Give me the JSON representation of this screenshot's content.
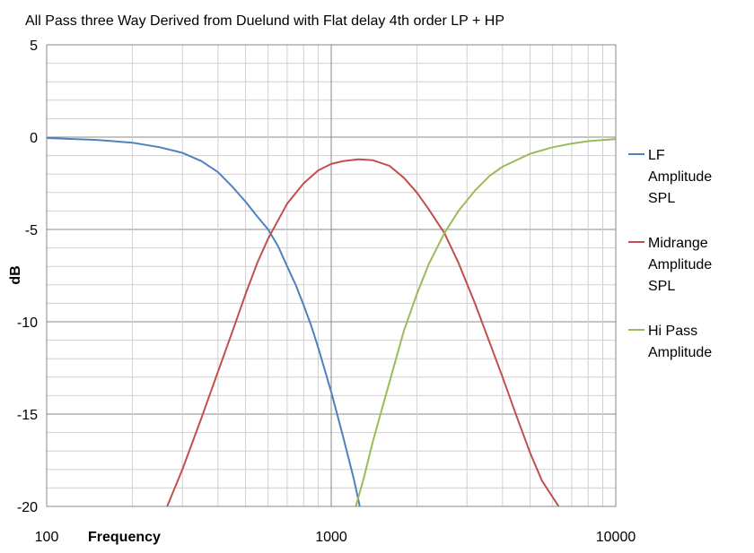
{
  "chart_data": {
    "type": "line",
    "title": "All Pass three Way Derived from Duelund with  Flat delay 4th order LP  + HP",
    "xlabel": "Frequency",
    "ylabel": "dB",
    "x_scale": "log",
    "xlim": [
      100,
      10000
    ],
    "ylim": [
      -20,
      5
    ],
    "x_ticks": [
      "100",
      "1000",
      "10000"
    ],
    "y_ticks": [
      "5",
      "0",
      "-5",
      "-10",
      "-15",
      "-20"
    ],
    "grid": true,
    "legend_position": "right",
    "series": [
      {
        "name": "LF Amplitude SPL",
        "name_lines": [
          "LF",
          "Amplitude",
          "SPL"
        ],
        "color": "#4f81bd",
        "points": [
          [
            100,
            -0.05
          ],
          [
            150,
            -0.15
          ],
          [
            200,
            -0.3
          ],
          [
            250,
            -0.55
          ],
          [
            300,
            -0.85
          ],
          [
            350,
            -1.3
          ],
          [
            400,
            -1.9
          ],
          [
            450,
            -2.7
          ],
          [
            500,
            -3.5
          ],
          [
            550,
            -4.3
          ],
          [
            600,
            -5.0
          ],
          [
            650,
            -5.9
          ],
          [
            700,
            -7.0
          ],
          [
            750,
            -8.0
          ],
          [
            800,
            -9.1
          ],
          [
            850,
            -10.2
          ],
          [
            900,
            -11.4
          ],
          [
            1000,
            -13.8
          ],
          [
            1100,
            -16.2
          ],
          [
            1200,
            -18.5
          ],
          [
            1260,
            -20.0
          ]
        ]
      },
      {
        "name": "Midrange Amplitude SPL",
        "name_lines": [
          "Midrange",
          "Amplitude",
          "SPL"
        ],
        "color": "#c0504d",
        "points": [
          [
            265,
            -20.0
          ],
          [
            300,
            -18.0
          ],
          [
            350,
            -15.2
          ],
          [
            400,
            -12.7
          ],
          [
            450,
            -10.5
          ],
          [
            500,
            -8.5
          ],
          [
            550,
            -6.8
          ],
          [
            600,
            -5.5
          ],
          [
            700,
            -3.6
          ],
          [
            800,
            -2.5
          ],
          [
            900,
            -1.8
          ],
          [
            1000,
            -1.45
          ],
          [
            1100,
            -1.3
          ],
          [
            1250,
            -1.2
          ],
          [
            1400,
            -1.25
          ],
          [
            1600,
            -1.55
          ],
          [
            1800,
            -2.2
          ],
          [
            2000,
            -3.0
          ],
          [
            2200,
            -3.9
          ],
          [
            2500,
            -5.2
          ],
          [
            2800,
            -6.8
          ],
          [
            3200,
            -9.0
          ],
          [
            3600,
            -11.1
          ],
          [
            4000,
            -13.0
          ],
          [
            4500,
            -15.2
          ],
          [
            5000,
            -17.1
          ],
          [
            5500,
            -18.6
          ],
          [
            6300,
            -20.0
          ]
        ]
      },
      {
        "name": "Hi Pass Amplitude",
        "name_lines": [
          "Hi Pass",
          "Amplitude"
        ],
        "color": "#9bbb59",
        "points": [
          [
            1220,
            -20.0
          ],
          [
            1300,
            -18.5
          ],
          [
            1400,
            -16.5
          ],
          [
            1600,
            -13.3
          ],
          [
            1800,
            -10.5
          ],
          [
            2000,
            -8.5
          ],
          [
            2200,
            -6.9
          ],
          [
            2500,
            -5.2
          ],
          [
            2800,
            -4.0
          ],
          [
            3200,
            -2.9
          ],
          [
            3600,
            -2.1
          ],
          [
            4000,
            -1.6
          ],
          [
            5000,
            -0.9
          ],
          [
            6000,
            -0.55
          ],
          [
            7000,
            -0.35
          ],
          [
            8000,
            -0.22
          ],
          [
            10000,
            -0.1
          ]
        ]
      }
    ]
  }
}
